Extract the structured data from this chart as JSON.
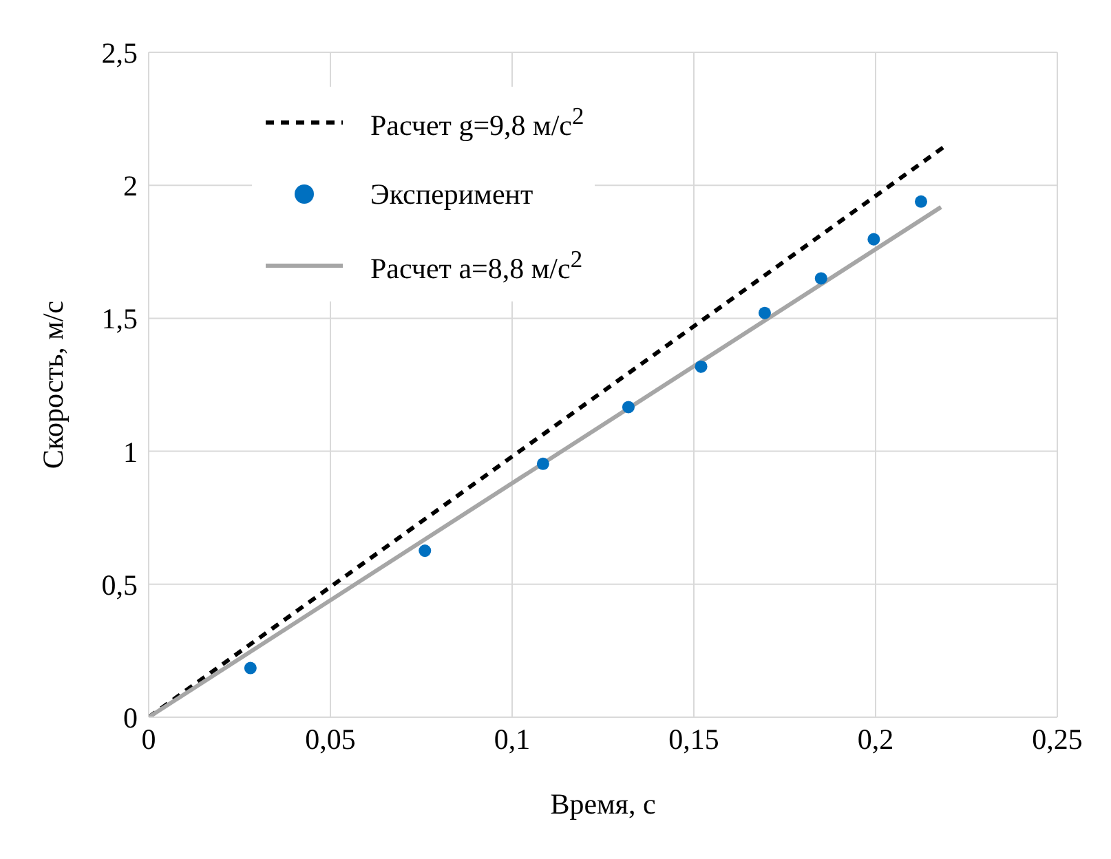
{
  "chart_data": {
    "type": "line",
    "xlabel": "Время, с",
    "ylabel": "Скорость, м/с",
    "xlim": [
      0,
      0.25
    ],
    "xticks": [
      0,
      {
        "value": 0.05,
        "label": "0,05"
      },
      {
        "value": 0.1,
        "label": "0,1"
      },
      {
        "value": 0.15,
        "label": "0,15"
      },
      {
        "value": 0.2,
        "label": "0,2"
      },
      {
        "value": 0.25,
        "label": "0,25"
      }
    ],
    "ylim": [
      0,
      2.5
    ],
    "yticks": [
      0,
      {
        "value": 0.5,
        "label": "0,5"
      },
      1,
      {
        "value": 1.5,
        "label": "1,5"
      },
      2,
      {
        "value": 2.5,
        "label": "2,5"
      }
    ],
    "grid": true,
    "legend": "top left",
    "series": [
      {
        "name": "Расчет g=9,8 м/с$^{2}$",
        "color": "#000000",
        "line_style": "dashed",
        "marker": "none",
        "x": [
          0,
          0.22
        ],
        "values": [
          0,
          2.156
        ]
      },
      {
        "name": "Эксперимент",
        "type": "scatter",
        "color": "#0070c0",
        "marker": "circle",
        "x": [
          0.028,
          0.076,
          0.1085,
          0.132,
          0.152,
          0.1695,
          0.185,
          0.1995,
          0.2125
        ],
        "values": [
          0.185,
          0.626,
          0.953,
          1.166,
          1.318,
          1.52,
          1.65,
          1.797,
          1.939
        ]
      },
      {
        "name": "Расчет a=8,8 м/с$^{2}$",
        "color": "#a6a6a6",
        "line_style": "solid",
        "marker": "none",
        "x": [
          0,
          0.218
        ],
        "values": [
          0,
          1.918
        ]
      }
    ]
  }
}
